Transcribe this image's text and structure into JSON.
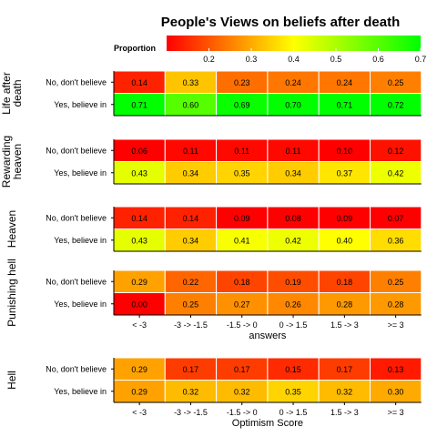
{
  "chart_data": {
    "type": "heatmap",
    "title": "People's Views on beliefs after death",
    "legend": {
      "title": "Proportion",
      "position": "top",
      "range": [
        0.1,
        0.7
      ],
      "ticks": [
        "0.2",
        "0.3",
        "0.4",
        "0.5",
        "0.6",
        "0.7"
      ],
      "gradient": [
        "#ff0000",
        "#ffff00",
        "#00ff00"
      ]
    },
    "x_categories": [
      "< -3",
      "-3 -> -1.5",
      "-1.5 -> 0",
      "0 -> 1.5",
      "1.5 -> 3",
      ">= 3"
    ],
    "rows": [
      "No, don't believe",
      "Yes, believe in"
    ],
    "panels": [
      {
        "strip_label": [
          "Life after",
          "death"
        ],
        "values": [
          [
            0.14,
            0.33,
            0.23,
            0.24,
            0.24,
            0.25
          ],
          [
            0.71,
            0.6,
            0.69,
            0.7,
            0.71,
            0.72
          ]
        ]
      },
      {
        "strip_label": [
          "Rewarding",
          "heaven"
        ],
        "values": [
          [
            0.06,
            0.11,
            0.11,
            0.11,
            0.1,
            0.12
          ],
          [
            0.43,
            0.34,
            0.35,
            0.34,
            0.37,
            0.42
          ]
        ]
      },
      {
        "strip_label": [
          "Heaven"
        ],
        "values": [
          [
            0.14,
            0.14,
            0.09,
            0.08,
            0.09,
            0.07
          ],
          [
            0.43,
            0.34,
            0.41,
            0.42,
            0.4,
            0.36
          ]
        ]
      },
      {
        "strip_label": [
          "Punishing hell"
        ],
        "values": [
          [
            0.29,
            0.22,
            0.18,
            0.19,
            0.18,
            0.25
          ],
          [
            0.0,
            0.25,
            0.27,
            0.26,
            0.28,
            0.28
          ]
        ],
        "xlabel": "answers"
      },
      {
        "strip_label": [
          "Hell"
        ],
        "values": [
          [
            0.29,
            0.17,
            0.17,
            0.15,
            0.17,
            0.13
          ],
          [
            0.29,
            0.32,
            0.32,
            0.35,
            0.32,
            0.3
          ]
        ],
        "xlabel": "Optimism Score"
      }
    ]
  }
}
